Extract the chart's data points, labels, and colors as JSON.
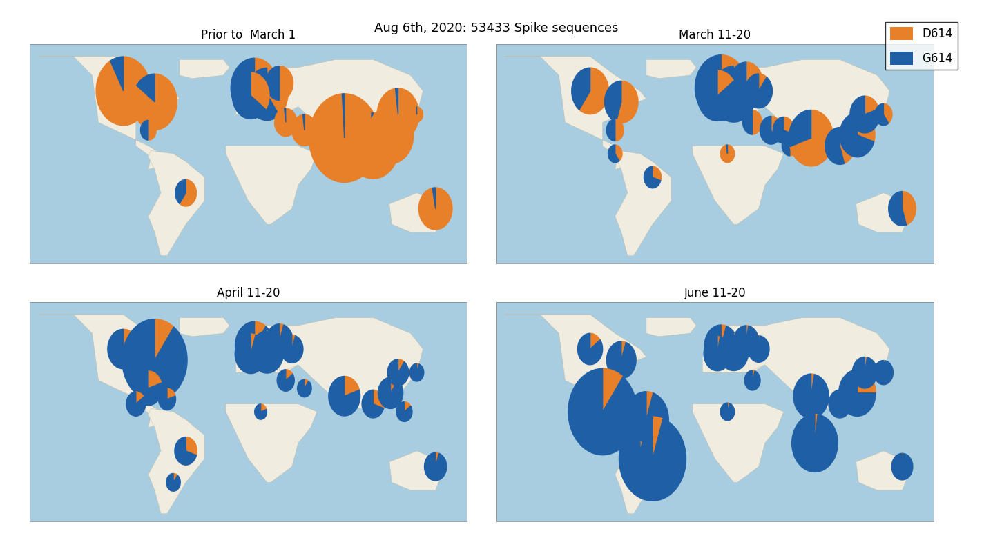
{
  "title": "Aug 6ᵗ˾stuff, 2020: 53433 Spike sequences",
  "title_plain": "Aug 6th, 2020: 53433 Spike sequences",
  "subtitle_fontsize": 14,
  "orange": "#E8802A",
  "blue": "#1F5FA6",
  "ocean_color": "#A8CCE0",
  "land_color": "#F0EDE0",
  "border_color": "#C0B8A0",
  "background_color": "#FFFFFF",
  "panel_titles": [
    "Prior to  March 1",
    "March 11-20",
    "April 11-20",
    "June 11-20"
  ],
  "panels": {
    "prior_march1": {
      "pies": [
        {
          "lon": -100,
          "lat": 50,
          "d614": 0.92,
          "g614": 0.08,
          "size": 120
        },
        {
          "lon": -75,
          "lat": 43,
          "d614": 0.85,
          "g614": 0.15,
          "size": 80
        },
        {
          "lon": -80,
          "lat": 25,
          "d614": 0.5,
          "g614": 0.5,
          "size": 10
        },
        {
          "lon": -50,
          "lat": -15,
          "d614": 0.6,
          "g614": 0.4,
          "size": 18
        },
        {
          "lon": 5,
          "lat": 52,
          "d614": 0.45,
          "g614": 0.55,
          "size": 90
        },
        {
          "lon": 15,
          "lat": 48,
          "d614": 0.4,
          "g614": 0.6,
          "size": 70
        },
        {
          "lon": 25,
          "lat": 55,
          "d614": 0.5,
          "g614": 0.5,
          "size": 30
        },
        {
          "lon": 2,
          "lat": 47,
          "d614": 0.35,
          "g614": 0.65,
          "size": 55
        },
        {
          "lon": 30,
          "lat": 30,
          "d614": 0.98,
          "g614": 0.02,
          "size": 20
        },
        {
          "lon": 45,
          "lat": 25,
          "d614": 0.98,
          "g614": 0.02,
          "size": 25
        },
        {
          "lon": 55,
          "lat": 25,
          "d614": 0.98,
          "g614": 0.02,
          "size": 15
        },
        {
          "lon": 60,
          "lat": 15,
          "d614": 0.98,
          "g614": 0.02,
          "size": 8
        },
        {
          "lon": 77,
          "lat": 20,
          "d614": 0.99,
          "g614": 0.01,
          "size": 200
        },
        {
          "lon": 100,
          "lat": 15,
          "d614": 0.99,
          "g614": 0.01,
          "size": 110
        },
        {
          "lon": 114,
          "lat": 22,
          "d614": 0.97,
          "g614": 0.03,
          "size": 85
        },
        {
          "lon": 120,
          "lat": 35,
          "d614": 0.98,
          "g614": 0.02,
          "size": 70
        },
        {
          "lon": 135,
          "lat": 35,
          "d614": 0.99,
          "g614": 0.01,
          "size": 6
        },
        {
          "lon": 150,
          "lat": -25,
          "d614": 0.97,
          "g614": 0.03,
          "size": 45
        }
      ]
    },
    "march_1120": {
      "pies": [
        {
          "lon": -100,
          "lat": 50,
          "d614": 0.6,
          "g614": 0.4,
          "size": 55
        },
        {
          "lon": -75,
          "lat": 43,
          "d614": 0.55,
          "g614": 0.45,
          "size": 45
        },
        {
          "lon": -80,
          "lat": 25,
          "d614": 0.5,
          "g614": 0.5,
          "size": 12
        },
        {
          "lon": -80,
          "lat": 10,
          "d614": 0.4,
          "g614": 0.6,
          "size": 8
        },
        {
          "lon": -50,
          "lat": -5,
          "d614": 0.3,
          "g614": 0.7,
          "size": 12
        },
        {
          "lon": 5,
          "lat": 52,
          "d614": 0.3,
          "g614": 0.7,
          "size": 110
        },
        {
          "lon": 15,
          "lat": 48,
          "d614": 0.25,
          "g614": 0.75,
          "size": 80
        },
        {
          "lon": 25,
          "lat": 55,
          "d614": 0.2,
          "g614": 0.8,
          "size": 45
        },
        {
          "lon": 2,
          "lat": 47,
          "d614": 0.15,
          "g614": 0.85,
          "size": 65
        },
        {
          "lon": 35,
          "lat": 50,
          "d614": 0.1,
          "g614": 0.9,
          "size": 30
        },
        {
          "lon": 30,
          "lat": 30,
          "d614": 0.5,
          "g614": 0.5,
          "size": 15
        },
        {
          "lon": 45,
          "lat": 25,
          "d614": 0.4,
          "g614": 0.6,
          "size": 20
        },
        {
          "lon": 55,
          "lat": 25,
          "d614": 0.3,
          "g614": 0.7,
          "size": 18
        },
        {
          "lon": 60,
          "lat": 15,
          "d614": 0.5,
          "g614": 0.5,
          "size": 10
        },
        {
          "lon": 77,
          "lat": 20,
          "d614": 0.7,
          "g614": 0.3,
          "size": 80
        },
        {
          "lon": 100,
          "lat": 15,
          "d614": 0.45,
          "g614": 0.55,
          "size": 35
        },
        {
          "lon": 114,
          "lat": 22,
          "d614": 0.3,
          "g614": 0.7,
          "size": 50
        },
        {
          "lon": 120,
          "lat": 35,
          "d614": 0.2,
          "g614": 0.8,
          "size": 35
        },
        {
          "lon": 135,
          "lat": 35,
          "d614": 0.4,
          "g614": 0.6,
          "size": 12
        },
        {
          "lon": 150,
          "lat": -25,
          "d614": 0.45,
          "g614": 0.55,
          "size": 30
        },
        {
          "lon": 10,
          "lat": 10,
          "d614": 0.98,
          "g614": 0.02,
          "size": 8
        }
      ]
    },
    "april_1120": {
      "pies": [
        {
          "lon": -100,
          "lat": 50,
          "d614": 0.35,
          "g614": 0.65,
          "size": 40
        },
        {
          "lon": -75,
          "lat": 43,
          "d614": 0.1,
          "g614": 0.9,
          "size": 170
        },
        {
          "lon": -80,
          "lat": 25,
          "d614": 0.2,
          "g614": 0.8,
          "size": 30
        },
        {
          "lon": -90,
          "lat": 15,
          "d614": 0.15,
          "g614": 0.85,
          "size": 15
        },
        {
          "lon": -65,
          "lat": 18,
          "d614": 0.2,
          "g614": 0.8,
          "size": 12
        },
        {
          "lon": -50,
          "lat": -15,
          "d614": 0.3,
          "g614": 0.7,
          "size": 20
        },
        {
          "lon": 5,
          "lat": 52,
          "d614": 0.1,
          "g614": 0.9,
          "size": 60
        },
        {
          "lon": 15,
          "lat": 48,
          "d614": 0.05,
          "g614": 0.95,
          "size": 45
        },
        {
          "lon": 25,
          "lat": 55,
          "d614": 0.05,
          "g614": 0.95,
          "size": 30
        },
        {
          "lon": 2,
          "lat": 47,
          "d614": 0.05,
          "g614": 0.95,
          "size": 40
        },
        {
          "lon": 35,
          "lat": 50,
          "d614": 0.05,
          "g614": 0.95,
          "size": 20
        },
        {
          "lon": 30,
          "lat": 30,
          "d614": 0.15,
          "g614": 0.85,
          "size": 12
        },
        {
          "lon": 45,
          "lat": 25,
          "d614": 0.1,
          "g614": 0.9,
          "size": 8
        },
        {
          "lon": 77,
          "lat": 20,
          "d614": 0.2,
          "g614": 0.8,
          "size": 40
        },
        {
          "lon": 100,
          "lat": 15,
          "d614": 0.3,
          "g614": 0.7,
          "size": 20
        },
        {
          "lon": 114,
          "lat": 22,
          "d614": 0.1,
          "g614": 0.9,
          "size": 25
        },
        {
          "lon": 120,
          "lat": 35,
          "d614": 0.1,
          "g614": 0.9,
          "size": 18
        },
        {
          "lon": 135,
          "lat": 35,
          "d614": 0.05,
          "g614": 0.95,
          "size": 8
        },
        {
          "lon": 150,
          "lat": -25,
          "d614": 0.05,
          "g614": 0.95,
          "size": 20
        },
        {
          "lon": 10,
          "lat": 10,
          "d614": 0.2,
          "g614": 0.8,
          "size": 6
        },
        {
          "lon": -60,
          "lat": -35,
          "d614": 0.1,
          "g614": 0.9,
          "size": 8
        },
        {
          "lon": 125,
          "lat": 10,
          "d614": 0.15,
          "g614": 0.85,
          "size": 10
        }
      ]
    },
    "june_1120": {
      "pies": [
        {
          "lon": -100,
          "lat": 50,
          "d614": 0.15,
          "g614": 0.85,
          "size": 25
        },
        {
          "lon": -75,
          "lat": 43,
          "d614": 0.05,
          "g614": 0.95,
          "size": 35
        },
        {
          "lon": -80,
          "lat": 25,
          "d614": 0.05,
          "g614": 0.95,
          "size": 18
        },
        {
          "lon": -90,
          "lat": 10,
          "d614": 0.1,
          "g614": 0.9,
          "size": 190
        },
        {
          "lon": -55,
          "lat": 5,
          "d614": 0.05,
          "g614": 0.95,
          "size": 80
        },
        {
          "lon": -50,
          "lat": -20,
          "d614": 0.05,
          "g614": 0.95,
          "size": 180
        },
        {
          "lon": 5,
          "lat": 52,
          "d614": 0.05,
          "g614": 0.95,
          "size": 45
        },
        {
          "lon": 15,
          "lat": 48,
          "d614": 0.03,
          "g614": 0.97,
          "size": 35
        },
        {
          "lon": 25,
          "lat": 55,
          "d614": 0.03,
          "g614": 0.97,
          "size": 25
        },
        {
          "lon": 2,
          "lat": 47,
          "d614": 0.03,
          "g614": 0.97,
          "size": 30
        },
        {
          "lon": 35,
          "lat": 50,
          "d614": 0.02,
          "g614": 0.98,
          "size": 18
        },
        {
          "lon": 30,
          "lat": 30,
          "d614": 0.05,
          "g614": 0.95,
          "size": 10
        },
        {
          "lon": 77,
          "lat": 20,
          "d614": 0.03,
          "g614": 0.97,
          "size": 50
        },
        {
          "lon": 100,
          "lat": 15,
          "d614": 0.05,
          "g614": 0.95,
          "size": 20
        },
        {
          "lon": 114,
          "lat": 22,
          "d614": 0.25,
          "g614": 0.75,
          "size": 55
        },
        {
          "lon": 120,
          "lat": 35,
          "d614": 0.03,
          "g614": 0.97,
          "size": 25
        },
        {
          "lon": 135,
          "lat": 35,
          "d614": 0.02,
          "g614": 0.98,
          "size": 15
        },
        {
          "lon": 150,
          "lat": -25,
          "d614": 0.02,
          "g614": 0.98,
          "size": 18
        },
        {
          "lon": 10,
          "lat": 10,
          "d614": 0.05,
          "g614": 0.95,
          "size": 8
        },
        {
          "lon": -60,
          "lat": -15,
          "d614": 0.05,
          "g614": 0.95,
          "size": 8
        },
        {
          "lon": 80,
          "lat": -10,
          "d614": 0.02,
          "g614": 0.98,
          "size": 85
        }
      ]
    }
  }
}
